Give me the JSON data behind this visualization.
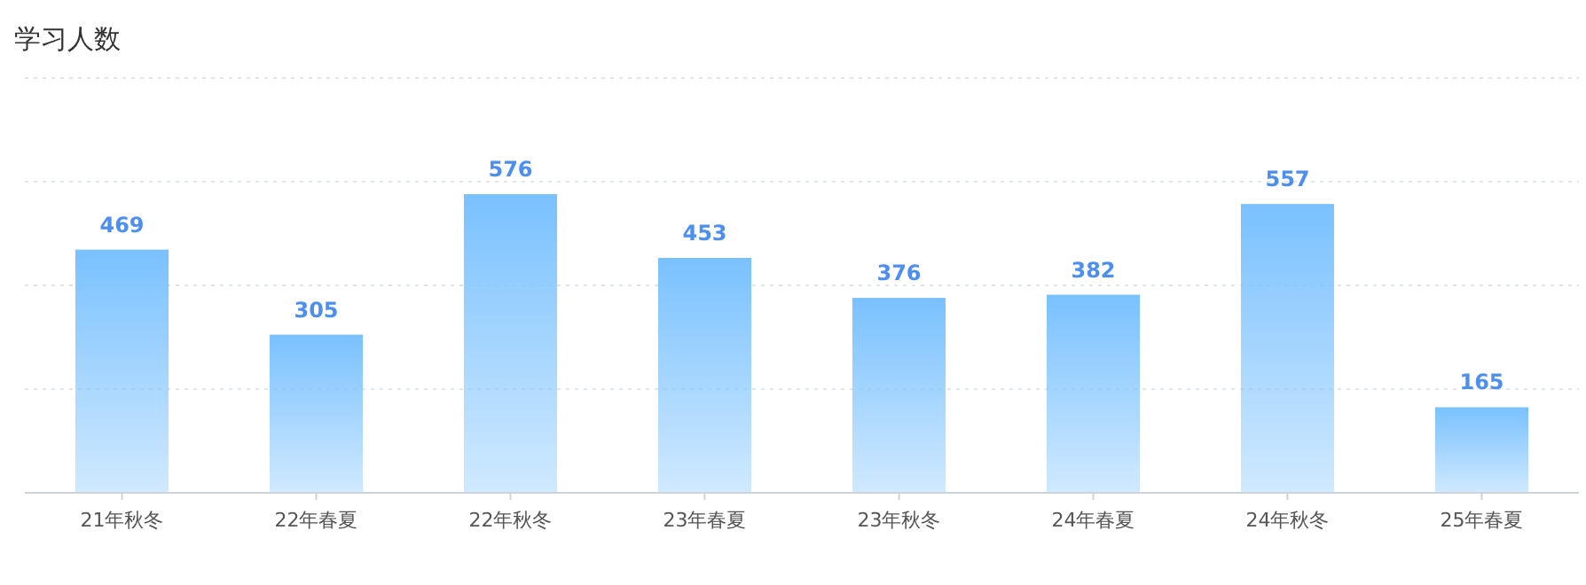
{
  "chart_data": {
    "type": "bar",
    "title": "学习人数",
    "categories": [
      "21年秋冬",
      "22年春夏",
      "22年秋冬",
      "23年春夏",
      "23年秋冬",
      "24年春夏",
      "24年秋冬",
      "25年春夏"
    ],
    "values": [
      469,
      305,
      576,
      453,
      376,
      382,
      557,
      165
    ],
    "color": "#79c1fe",
    "ylim": [
      0,
      800
    ],
    "yticks": [
      {
        "value": 0,
        "label": null
      },
      {
        "value": 200,
        "label": null
      },
      {
        "value": 400,
        "label": null
      },
      {
        "value": 600,
        "label": null
      },
      {
        "value": 800,
        "label": null
      }
    ],
    "grid": "y",
    "tick_labels": "x",
    "data_labels": true
  }
}
